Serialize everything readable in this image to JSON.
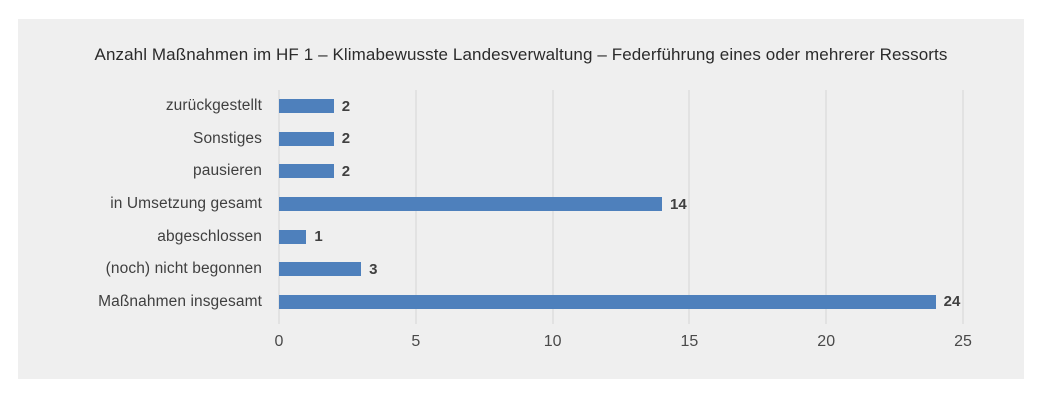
{
  "chart_data": {
    "type": "bar",
    "orientation": "horizontal",
    "title": "Anzahl Maßnahmen im HF 1 – Klimabewusste Landesverwaltung – Federführung eines oder mehrerer Ressorts",
    "categories": [
      "zurückgestellt",
      "Sonstiges",
      "pausieren",
      "in Umsetzung gesamt",
      "abgeschlossen",
      "(noch) nicht begonnen",
      "Maßnahmen insgesamt"
    ],
    "values": [
      2,
      2,
      2,
      14,
      1,
      3,
      24
    ],
    "data_labels": [
      "2",
      "2",
      "2",
      "14",
      "1",
      "3",
      "24"
    ],
    "xlabel": "",
    "ylabel": "",
    "xlim": [
      0,
      25
    ],
    "x_ticks": [
      0,
      5,
      10,
      15,
      20,
      25
    ],
    "grid": "vertical gridlines on",
    "legend": "none",
    "colors": {
      "bar": "#4e80bc",
      "panel_background": "#efefef",
      "page_background": "#ffffff",
      "gridline": "#d6d6d6",
      "text": "#3f3f3f"
    }
  }
}
